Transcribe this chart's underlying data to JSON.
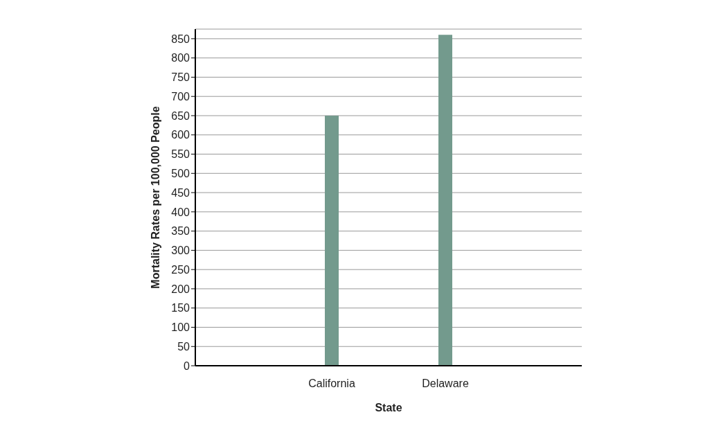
{
  "chart_data": {
    "type": "bar",
    "xlabel": "State",
    "ylabel": "Mortality Rates per 100,000 People",
    "categories": [
      "California",
      "Delaware"
    ],
    "values": [
      650,
      860
    ],
    "color": "#739a8d",
    "ylim": [
      0,
      875
    ],
    "yticks": [
      0,
      50,
      100,
      150,
      200,
      250,
      300,
      350,
      400,
      450,
      500,
      550,
      600,
      650,
      700,
      750,
      800,
      850
    ],
    "grid": "y"
  }
}
